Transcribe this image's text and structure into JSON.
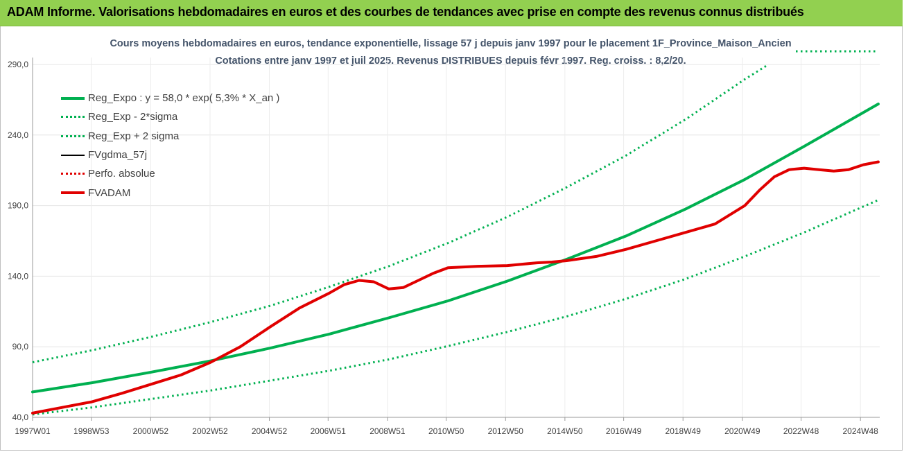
{
  "banner": {
    "title": "ADAM Informe. Valorisations hebdomadaires en euros et des courbes de tendances avec prise en compte des revenus connus distribués"
  },
  "colors": {
    "banner_bg": "#92d050",
    "trend_green": "#00b050",
    "fvadam_red": "#e00000",
    "fvgdma_black": "#000000",
    "subtitle_text": "#44546a",
    "grid": "#e6e6e6"
  },
  "chart_data": {
    "type": "line",
    "title": "Cours moyens hebdomadaires en euros, tendance exponentielle, lissage 57 j depuis janv 1997 pour le placement 1F_Province_Maison_Ancien",
    "subtitle": "Cotations entre janv 1997 et juil 2025. Revenus DISTRIBUES depuis févr 1997. Reg. croiss. : 8,2/20.",
    "xlabel": "",
    "ylabel": "",
    "ylim": [
      40,
      290
    ],
    "xlim": [
      1997.0,
      2025.55
    ],
    "y_ticks": [
      "40,0",
      "90,0",
      "140,0",
      "190,0",
      "240,0",
      "290,0"
    ],
    "y_tick_values": [
      40,
      90,
      140,
      190,
      240,
      290
    ],
    "x_ticks": [
      "1997W01",
      "1998W53",
      "2000W52",
      "2002W52",
      "2004W52",
      "2006W51",
      "2008W51",
      "2010W50",
      "2012W50",
      "2014W50",
      "2016W49",
      "2018W49",
      "2020W49",
      "2022W48",
      "2024W48"
    ],
    "x_tick_values": [
      1997.0,
      1998.98,
      2000.98,
      2002.98,
      2004.98,
      2006.96,
      2008.96,
      2010.94,
      2012.94,
      2014.94,
      2016.92,
      2018.92,
      2020.92,
      2022.9,
      2024.9
    ],
    "grid": true,
    "legend_position": "top-left",
    "series": [
      {
        "name": "Reg_Expo : y = 58,0 * exp( 5,3% *  X_an )",
        "style": "solid-thick",
        "color": "#00b050",
        "x": [
          1997.0,
          1999.0,
          2001.0,
          2003.0,
          2005.0,
          2007.0,
          2009.0,
          2011.0,
          2013.0,
          2015.0,
          2017.0,
          2019.0,
          2021.0,
          2023.0,
          2025.5
        ],
        "values": [
          58,
          64.5,
          72,
          80,
          89,
          99,
          110.5,
          122.5,
          136.5,
          152,
          168.5,
          187.5,
          208.5,
          232,
          262
        ]
      },
      {
        "name": "Reg_Exp - 2*sigma",
        "style": "dotted",
        "color": "#00b050",
        "x": [
          1997.0,
          1999.0,
          2001.0,
          2003.0,
          2005.0,
          2007.0,
          2009.0,
          2011.0,
          2013.0,
          2015.0,
          2017.0,
          2019.0,
          2021.0,
          2023.0,
          2025.5
        ],
        "values": [
          42,
          47,
          53,
          59,
          66,
          73,
          81,
          90.5,
          100.5,
          111.5,
          124,
          138,
          154,
          171,
          194
        ]
      },
      {
        "name": "Reg_Exp + 2 sigma",
        "style": "dotted",
        "color": "#00b050",
        "x": [
          1997.0,
          1999.0,
          2001.0,
          2003.0,
          2005.0,
          2007.0,
          2009.0,
          2011.0,
          2013.0,
          2015.0,
          2017.0,
          2019.0,
          2021.0,
          2021.8
        ],
        "values": [
          79,
          87.5,
          97,
          107.5,
          119,
          132.5,
          147,
          163.5,
          182,
          203,
          225.5,
          251,
          279.5,
          290
        ]
      },
      {
        "name": "FVgdma_57j",
        "style": "solid",
        "color": "#000000",
        "x": [
          1997.0,
          1998.0,
          1999.0,
          2000.0,
          2001.0,
          2002.0,
          2003.0,
          2004.0,
          2005.0,
          2006.0,
          2007.0,
          2007.5,
          2008.0,
          2008.5,
          2009.0,
          2009.5,
          2010.0,
          2010.5,
          2011.0,
          2012.0,
          2013.0,
          2014.0,
          2014.5,
          2015.0,
          2016.0,
          2017.0,
          2018.0,
          2019.0,
          2020.0,
          2021.0,
          2021.5,
          2022.0,
          2022.5,
          2023.0,
          2023.5,
          2024.0,
          2024.5,
          2025.0,
          2025.5
        ],
        "values": [
          43,
          47,
          51,
          57,
          63.5,
          70,
          79,
          90,
          104,
          117.5,
          128,
          134,
          137,
          136,
          131,
          132,
          137,
          142,
          146,
          147,
          147.5,
          149.5,
          150,
          151,
          154,
          159,
          165,
          171,
          177,
          190,
          201,
          210.5,
          215.5,
          216.5,
          215.5,
          214.5,
          215.5,
          219,
          221
        ]
      },
      {
        "name": "Perfo. absolue",
        "style": "dotted",
        "color": "#e00000",
        "x": [
          1997.0,
          1998.0,
          1999.0,
          2000.0,
          2001.0,
          2002.0,
          2003.0,
          2004.0,
          2005.0,
          2006.0,
          2007.0,
          2007.5,
          2008.0,
          2008.5,
          2009.0,
          2009.5,
          2010.0,
          2010.5,
          2011.0,
          2012.0,
          2013.0,
          2014.0,
          2014.5,
          2015.0,
          2016.0,
          2017.0,
          2018.0,
          2019.0,
          2020.0,
          2021.0,
          2021.5,
          2022.0,
          2022.5,
          2023.0,
          2023.5,
          2024.0,
          2024.5,
          2025.0,
          2025.5
        ],
        "values": [
          43,
          47,
          51,
          57,
          63.5,
          70,
          79,
          90,
          104,
          117.5,
          128,
          134,
          137,
          136,
          131,
          132,
          137,
          142,
          146,
          147,
          147.5,
          149.5,
          150,
          151,
          154,
          159,
          165,
          171,
          177,
          190,
          201,
          210.5,
          215.5,
          216.5,
          215.5,
          214.5,
          215.5,
          219,
          221
        ]
      },
      {
        "name": "FVADAM",
        "style": "solid-thick",
        "color": "#e00000",
        "x": [
          1997.0,
          1998.0,
          1999.0,
          2000.0,
          2001.0,
          2002.0,
          2003.0,
          2004.0,
          2005.0,
          2006.0,
          2007.0,
          2007.5,
          2008.0,
          2008.5,
          2009.0,
          2009.5,
          2010.0,
          2010.5,
          2011.0,
          2012.0,
          2013.0,
          2014.0,
          2014.5,
          2015.0,
          2016.0,
          2017.0,
          2018.0,
          2019.0,
          2020.0,
          2021.0,
          2021.5,
          2022.0,
          2022.5,
          2023.0,
          2023.5,
          2024.0,
          2024.5,
          2025.0,
          2025.5
        ],
        "values": [
          43,
          47,
          51,
          57,
          63.5,
          70,
          79,
          90,
          104,
          117.5,
          128,
          134,
          137,
          136,
          131,
          132,
          137,
          142,
          146,
          147,
          147.5,
          149.5,
          150,
          151,
          154,
          159,
          165,
          171,
          177,
          190,
          201,
          210.5,
          215.5,
          216.5,
          215.5,
          214.5,
          215.5,
          219,
          221
        ]
      }
    ]
  }
}
